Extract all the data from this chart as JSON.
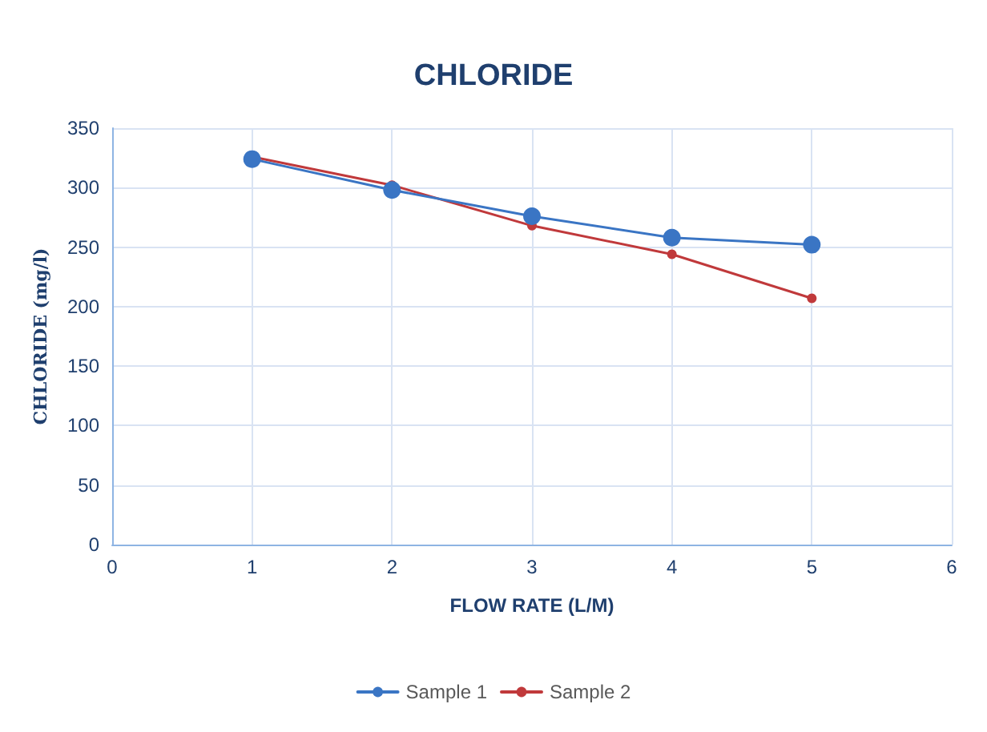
{
  "chart_data": {
    "type": "line",
    "title": "CHLORIDE",
    "xlabel": "FLOW RATE (L/M)",
    "ylabel": "CHLORIDE (mg/l)",
    "x": [
      1,
      2,
      3,
      4,
      5
    ],
    "series": [
      {
        "name": "Sample 1",
        "color": "#3a75c4",
        "values": [
          324,
          298,
          276,
          258,
          252
        ]
      },
      {
        "name": "Sample 2",
        "color": "#c0393b",
        "values": [
          326,
          302,
          268,
          244,
          207
        ]
      }
    ],
    "xlim": [
      0,
      6
    ],
    "xticks": [
      0,
      1,
      2,
      3,
      4,
      5,
      6
    ],
    "ylim": [
      0,
      350
    ],
    "yticks": [
      0,
      50,
      100,
      150,
      200,
      250,
      300,
      350
    ],
    "grid": true,
    "legend": "bottom",
    "marker": "circle",
    "line_style": "solid"
  }
}
